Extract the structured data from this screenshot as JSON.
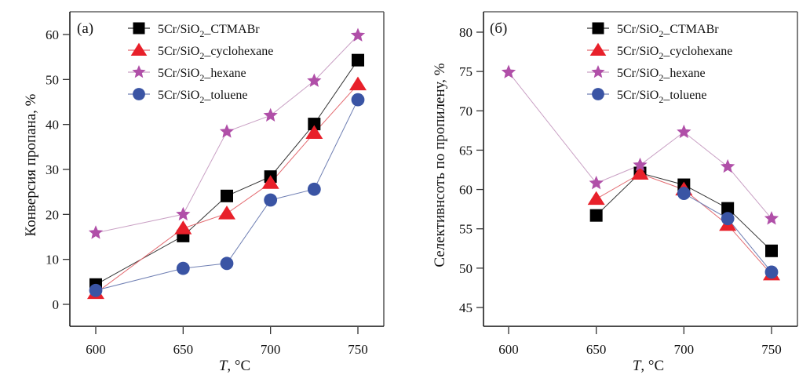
{
  "chart_data": [
    {
      "type": "line",
      "panel_label": "(a)",
      "title": "",
      "xlabel_italic": "T",
      "xlabel_rest": ", °C",
      "ylabel": "Конверсия пропана, %",
      "xlim": [
        588,
        765
      ],
      "ylim": [
        -5,
        65
      ],
      "xticks": [
        600,
        650,
        700,
        750
      ],
      "yticks": [
        0,
        10,
        20,
        30,
        40,
        50,
        60
      ],
      "grid": false,
      "legend_position": "top-center",
      "series": [
        {
          "name": "5Cr/SiO2_CTMABr",
          "legend_prefix": "5Cr/SiO",
          "legend_sub": "2",
          "legend_suffix": "_CTMABr",
          "marker": "square",
          "color": "#000000",
          "line_color": "#333333",
          "x": [
            600,
            650,
            675,
            700,
            725,
            750
          ],
          "y": [
            4.4,
            15.2,
            24.1,
            28.4,
            40.1,
            54.3
          ]
        },
        {
          "name": "5Cr/SiO2_cyclohexane",
          "legend_prefix": "5Cr/SiO",
          "legend_sub": "2",
          "legend_suffix": "_cyclohexane",
          "marker": "triangle",
          "color": "#e8202a",
          "line_color": "#e36a70",
          "x": [
            600,
            650,
            675,
            700,
            725,
            750
          ],
          "y": [
            2.5,
            16.9,
            20.2,
            27.0,
            38.1,
            48.9
          ]
        },
        {
          "name": "5Cr/SiO2_hexane",
          "legend_prefix": "5Cr/SiO",
          "legend_sub": "2",
          "legend_suffix": "_hexane",
          "marker": "star",
          "color": "#b04fa8",
          "line_color": "#c9a0c4",
          "x": [
            600,
            650,
            675,
            700,
            725,
            750
          ],
          "y": [
            15.9,
            20.0,
            38.4,
            42.0,
            49.7,
            59.8
          ]
        },
        {
          "name": "5Cr/SiO2_toluene",
          "legend_prefix": "5Cr/SiO",
          "legend_sub": "2",
          "legend_suffix": "_toluene",
          "marker": "circle",
          "color": "#3a54a4",
          "line_color": "#6f7fb3",
          "x": [
            600,
            650,
            675,
            700,
            725,
            750
          ],
          "y": [
            3.1,
            8.0,
            9.1,
            23.2,
            25.6,
            45.5
          ]
        }
      ]
    },
    {
      "type": "line",
      "panel_label": "(б)",
      "title": "",
      "xlabel_italic": "T",
      "xlabel_rest": ", °C",
      "ylabel": "Селективнсоть по пропилену, %",
      "xlim": [
        585,
        765
      ],
      "ylim": [
        42.5,
        82.5
      ],
      "xticks": [
        600,
        650,
        700,
        750
      ],
      "yticks": [
        45,
        50,
        55,
        60,
        65,
        70,
        75,
        80
      ],
      "grid": false,
      "legend_position": "top-right",
      "series": [
        {
          "name": "5Cr/SiO2_CTMABr",
          "legend_prefix": "5Cr/SiO",
          "legend_sub": "2",
          "legend_suffix": "_CTMABr",
          "marker": "square",
          "color": "#000000",
          "line_color": "#333333",
          "x": [
            650,
            675,
            700,
            725,
            750
          ],
          "y": [
            56.7,
            62.1,
            60.6,
            57.6,
            52.2
          ]
        },
        {
          "name": "5Cr/SiO2_cyclohexane",
          "legend_prefix": "5Cr/SiO",
          "legend_sub": "2",
          "legend_suffix": "_cyclohexane",
          "marker": "triangle",
          "color": "#e8202a",
          "line_color": "#e36a70",
          "x": [
            650,
            675,
            700,
            725,
            750
          ],
          "y": [
            58.8,
            62.0,
            60.0,
            55.5,
            49.2
          ]
        },
        {
          "name": "5Cr/SiO2_hexane",
          "legend_prefix": "5Cr/SiO",
          "legend_sub": "2",
          "legend_suffix": "_hexane",
          "marker": "star",
          "color": "#b04fa8",
          "line_color": "#c9a0c4",
          "x": [
            600,
            650,
            675,
            700,
            725,
            750
          ],
          "y": [
            74.9,
            60.8,
            63.1,
            67.3,
            62.9,
            56.3
          ]
        },
        {
          "name": "5Cr/SiO2_toluene",
          "legend_prefix": "5Cr/SiO",
          "legend_sub": "2",
          "legend_suffix": "_toluene",
          "marker": "circle",
          "color": "#3a54a4",
          "line_color": "#6f7fb3",
          "x": [
            700,
            725,
            750
          ],
          "y": [
            59.5,
            56.3,
            49.5
          ]
        }
      ]
    }
  ]
}
